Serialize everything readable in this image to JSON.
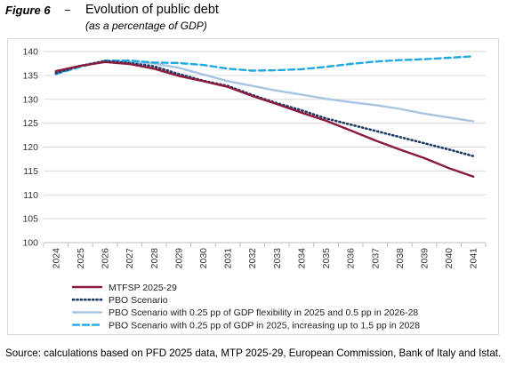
{
  "figure": {
    "label": "Figure 6",
    "dash": "−",
    "title": "Evolution of public debt",
    "subtitle": "(as a percentage of GDP)"
  },
  "source": "Source: calculations based on PFD 2025 data, MTP 2025-29, European Commission, Bank of Italy and Istat.",
  "chart_data": {
    "type": "line",
    "title": "Evolution of public debt",
    "subtitle": "(as a percentage of GDP)",
    "xlabel": "",
    "ylabel": "",
    "ylim": [
      100,
      140
    ],
    "yticks": [
      100,
      105,
      110,
      115,
      120,
      125,
      130,
      135,
      140
    ],
    "grid": "horizontal",
    "legend": "bottom",
    "categories": [
      "2024",
      "2025",
      "2026",
      "2027",
      "2028",
      "2029",
      "2030",
      "2031",
      "2032",
      "2033",
      "2034",
      "2035",
      "2036",
      "2037",
      "2038",
      "2039",
      "2040",
      "2041"
    ],
    "series": [
      {
        "name": "MTFSP 2025-29",
        "color": "#8b1a3c",
        "style": "solid",
        "values": [
          135.9,
          137.0,
          137.8,
          137.4,
          136.4,
          134.9,
          133.8,
          132.6,
          130.7,
          129.0,
          127.2,
          125.5,
          123.5,
          121.4,
          119.5,
          117.7,
          115.6,
          113.8
        ]
      },
      {
        "name": "PBO Scenario",
        "color": "#1f3864",
        "style": "dotted",
        "values": [
          135.5,
          137.0,
          138.0,
          137.6,
          136.9,
          135.3,
          133.9,
          132.8,
          130.9,
          129.2,
          127.7,
          126.0,
          124.7,
          123.4,
          122.1,
          120.8,
          119.5,
          118.1
        ]
      },
      {
        "name": "PBO Scenario with 0.25 pp of GDP flexibility in 2025 and 0.5 pp in 2026-28",
        "color": "#a7c4e3",
        "style": "solid",
        "values": [
          135.5,
          137.0,
          138.0,
          137.8,
          137.5,
          136.6,
          135.2,
          133.8,
          132.8,
          131.8,
          131.0,
          130.1,
          129.4,
          128.8,
          128.0,
          127.0,
          126.2,
          125.4
        ]
      },
      {
        "name": "PBO Scenario with 0.25 pp of GDP in 2025, increasing up to 1,5 pp in 2028",
        "color": "#22a8e0",
        "style": "dashed",
        "values": [
          135.3,
          136.8,
          138.1,
          138.1,
          137.7,
          137.6,
          137.2,
          136.4,
          136.0,
          136.1,
          136.3,
          136.8,
          137.4,
          137.9,
          138.2,
          138.4,
          138.7,
          139.0
        ]
      }
    ]
  }
}
